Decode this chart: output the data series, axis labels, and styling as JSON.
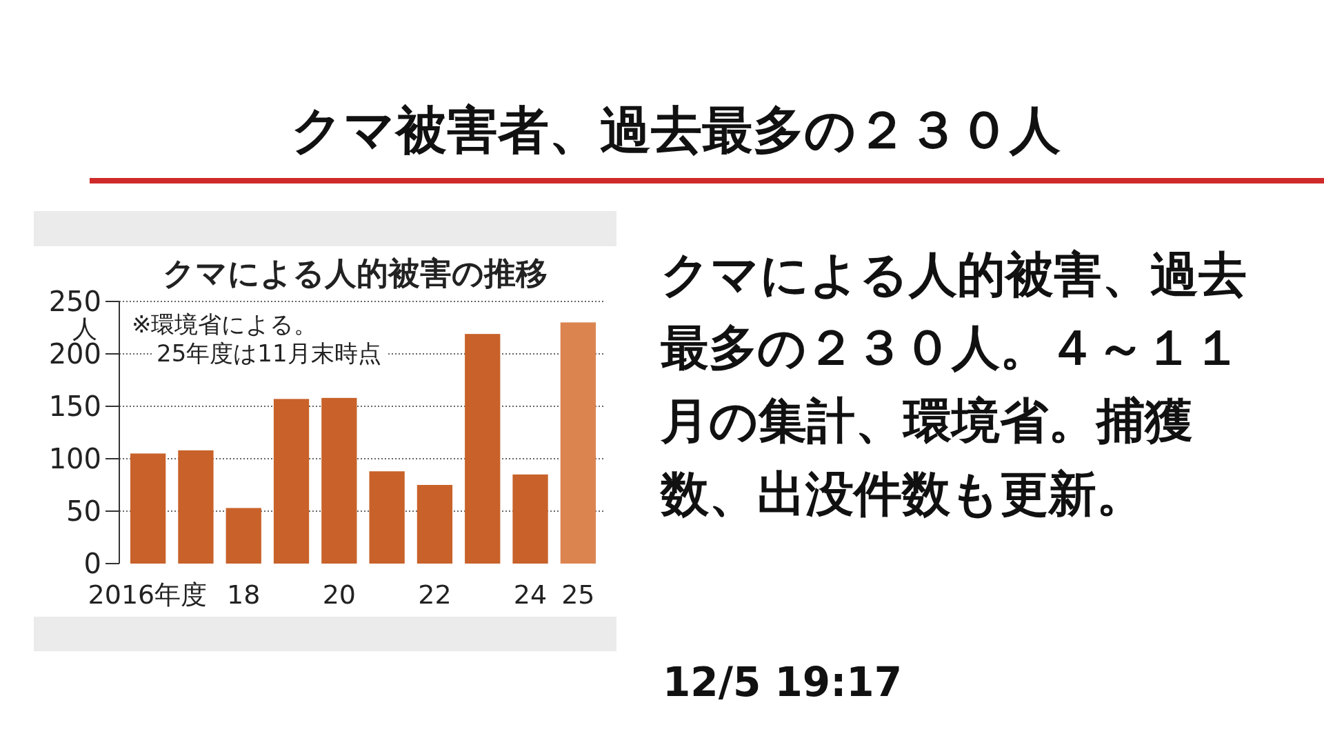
{
  "chart_data": [
    {
      "type": "other",
      "title": "クマ被害者、過去最多の２３０人",
      "annotations": [
        "クマによる人的被害、過去最多の２３０人。４～１１月の集計、環境省。捕獲数、出没件数も更新。",
        "12/5 19:17"
      ]
    },
    {
      "type": "bar",
      "title": "クマによる人的被害の推移",
      "ylabel": "人",
      "annotations": [
        "※環境省による。",
        "25年度は11月末時点"
      ],
      "categories": [
        "2016年度",
        null,
        "18",
        null,
        "20",
        null,
        "22",
        null,
        "24",
        "25"
      ],
      "values": [
        105,
        108,
        53,
        157,
        158,
        88,
        75,
        219,
        85,
        230
      ],
      "colors": [
        "#c8622a",
        "#c8622a",
        "#c8622a",
        "#c8622a",
        "#c8622a",
        "#c8622a",
        "#c8622a",
        "#c8622a",
        "#c8622a",
        "#dc8450"
      ],
      "ylim": [
        0,
        250
      ],
      "yticks": [
        0,
        50,
        100,
        150,
        200,
        250
      ],
      "grid": "y"
    }
  ]
}
